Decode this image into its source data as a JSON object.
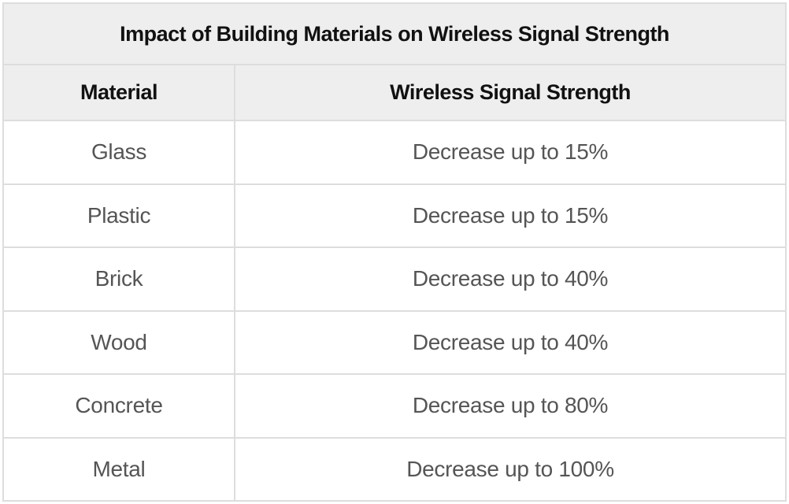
{
  "chart_data": {
    "type": "table",
    "title": "Impact of Building Materials on Wireless Signal Strength",
    "columns": [
      "Material",
      "Wireless Signal Strength"
    ],
    "rows": [
      [
        "Glass",
        "Decrease up to 15%"
      ],
      [
        "Plastic",
        "Decrease up to 15%"
      ],
      [
        "Brick",
        "Decrease up to 40%"
      ],
      [
        "Wood",
        "Decrease up to 40%"
      ],
      [
        "Concrete",
        "Decrease up to 80%"
      ],
      [
        "Metal",
        "Decrease up to 100%"
      ]
    ],
    "layout_hints": {
      "title_position": "top-banner",
      "cell_alignment": "center",
      "grid": "on"
    }
  },
  "colors": {
    "header_bg": "#eeeeee",
    "border": "#dddddd",
    "body_text": "#555555",
    "heading_text": "#111111",
    "row_bg": "#ffffff"
  }
}
